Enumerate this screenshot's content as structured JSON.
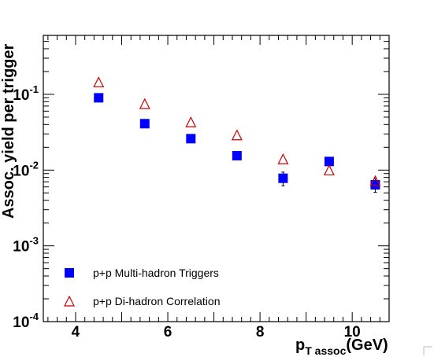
{
  "chart_data": {
    "type": "scatter",
    "title": "",
    "xlabel": {
      "main": "p",
      "sub": "T assoc",
      "unit": "(GeV)"
    },
    "ylabel": "Assoc. yield per trigger",
    "xlim": [
      3.3,
      10.8
    ],
    "ylim": [
      0.0001,
      0.6
    ],
    "yscale": "log",
    "x_ticks": [
      {
        "value": 4,
        "label": "4"
      },
      {
        "value": 6,
        "label": "6"
      },
      {
        "value": 8,
        "label": "8"
      },
      {
        "value": 10,
        "label": "10"
      }
    ],
    "y_ticks": [
      {
        "value": 0.1,
        "base": "10",
        "exp": "-1"
      },
      {
        "value": 0.01,
        "base": "10",
        "exp": "-2"
      },
      {
        "value": 0.001,
        "base": "10",
        "exp": "-3"
      },
      {
        "value": 0.0001,
        "base": "10",
        "exp": "-4"
      }
    ],
    "legend_position": "bottom-left",
    "grid": false,
    "series": [
      {
        "name": "p+p Multi-hadron Triggers",
        "marker": "filled-square",
        "color": "#0000ff",
        "x": [
          4.5,
          5.5,
          6.5,
          7.5,
          8.5,
          9.5,
          10.5
        ],
        "y": [
          0.09,
          0.041,
          0.026,
          0.0155,
          0.0078,
          0.013,
          0.0064
        ],
        "yerr": [
          0.003,
          0.0015,
          0.001,
          0.0017,
          0.0016,
          0.0015,
          0.0013
        ]
      },
      {
        "name": "p+p Di-hadron Correlation",
        "marker": "open-triangle",
        "color": "#cc0000",
        "x": [
          4.5,
          5.5,
          6.5,
          7.5,
          8.5,
          9.5,
          10.5
        ],
        "y": [
          0.145,
          0.075,
          0.043,
          0.029,
          0.014,
          0.01,
          0.0072
        ],
        "yerr": []
      }
    ]
  }
}
